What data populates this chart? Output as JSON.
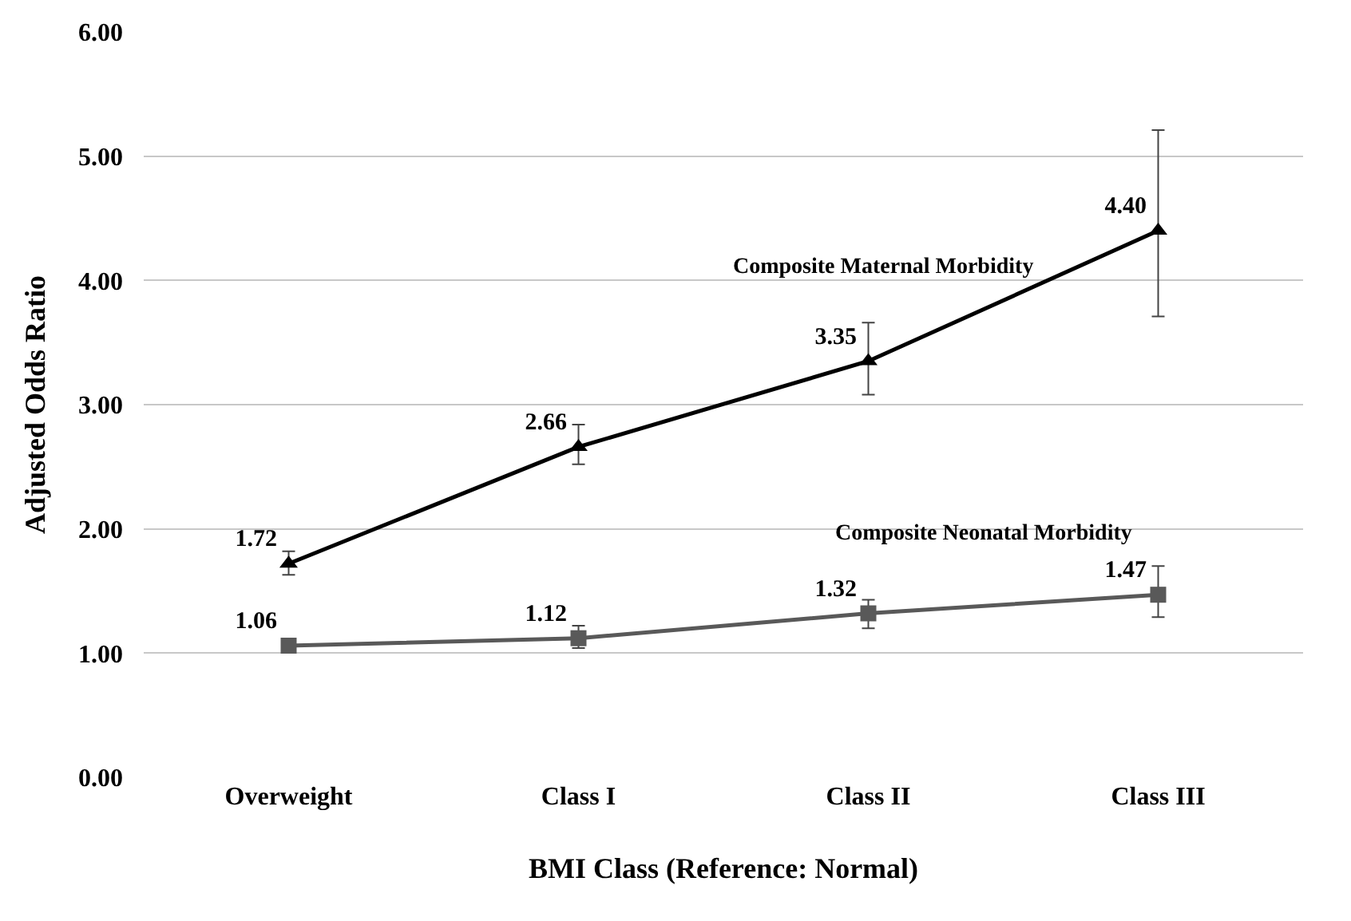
{
  "chart_data": {
    "type": "line",
    "xlabel": "BMI Class (Reference: Normal)",
    "ylabel": "Adjusted Odds Ratio",
    "categories": [
      "Overweight",
      "Class I",
      "Class II",
      "Class III"
    ],
    "series": [
      {
        "name": "Composite Maternal Morbidity",
        "color": "#000000",
        "marker": "triangle",
        "values": [
          1.72,
          2.66,
          3.35,
          4.4
        ],
        "value_labels": [
          "1.72",
          "2.66",
          "3.35",
          "4.40"
        ],
        "errors": [
          [
            1.63,
            1.82
          ],
          [
            2.52,
            2.84
          ],
          [
            3.08,
            3.66
          ],
          [
            3.71,
            5.21
          ]
        ]
      },
      {
        "name": "Composite Neonatal Morbidity",
        "color": "#595959",
        "marker": "square",
        "values": [
          1.06,
          1.12,
          1.32,
          1.47
        ],
        "value_labels": [
          "1.06",
          "1.12",
          "1.32",
          "1.47"
        ],
        "errors": [
          [
            1.03,
            1.09
          ],
          [
            1.04,
            1.22
          ],
          [
            1.2,
            1.43
          ],
          [
            1.29,
            1.7
          ]
        ]
      }
    ],
    "ylim": [
      0,
      6
    ],
    "yticks": [
      {
        "value": 0,
        "label": "0.00"
      },
      {
        "value": 1,
        "label": "1.00"
      },
      {
        "value": 2,
        "label": "2.00"
      },
      {
        "value": 3,
        "label": "3.00"
      },
      {
        "value": 4,
        "label": "4.00"
      },
      {
        "value": 5,
        "label": "5.00"
      },
      {
        "value": 6,
        "label": "6.00"
      }
    ],
    "grid": "y",
    "legend": false,
    "line_style": "solid"
  }
}
